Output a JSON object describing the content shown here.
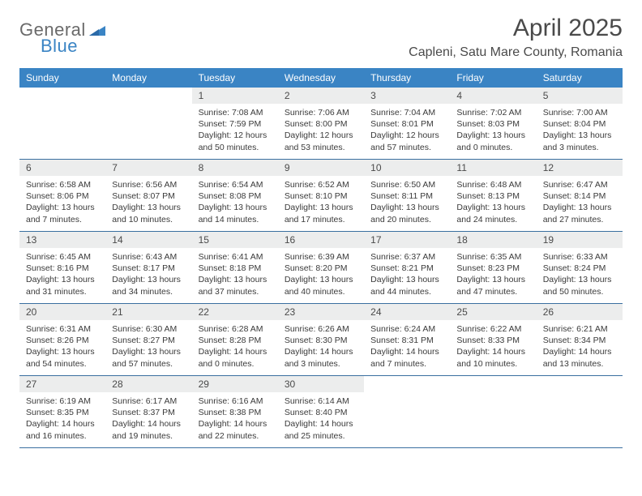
{
  "brand": {
    "part1": "General",
    "part2": "Blue",
    "color_gray": "#6a6a6a",
    "color_blue": "#3a84c4"
  },
  "title": "April 2025",
  "location": "Capleni, Satu Mare County, Romania",
  "colors": {
    "header_bg": "#3a84c4",
    "header_text": "#ffffff",
    "daynum_bg": "#eceded",
    "row_border": "#3a6fa0",
    "body_text": "#3a3a3a",
    "title_text": "#4a4a4a"
  },
  "daynames": [
    "Sunday",
    "Monday",
    "Tuesday",
    "Wednesday",
    "Thursday",
    "Friday",
    "Saturday"
  ],
  "weeks": [
    [
      {
        "n": "",
        "sr": "",
        "ss": "",
        "dl": ""
      },
      {
        "n": "",
        "sr": "",
        "ss": "",
        "dl": ""
      },
      {
        "n": "1",
        "sr": "Sunrise: 7:08 AM",
        "ss": "Sunset: 7:59 PM",
        "dl": "Daylight: 12 hours and 50 minutes."
      },
      {
        "n": "2",
        "sr": "Sunrise: 7:06 AM",
        "ss": "Sunset: 8:00 PM",
        "dl": "Daylight: 12 hours and 53 minutes."
      },
      {
        "n": "3",
        "sr": "Sunrise: 7:04 AM",
        "ss": "Sunset: 8:01 PM",
        "dl": "Daylight: 12 hours and 57 minutes."
      },
      {
        "n": "4",
        "sr": "Sunrise: 7:02 AM",
        "ss": "Sunset: 8:03 PM",
        "dl": "Daylight: 13 hours and 0 minutes."
      },
      {
        "n": "5",
        "sr": "Sunrise: 7:00 AM",
        "ss": "Sunset: 8:04 PM",
        "dl": "Daylight: 13 hours and 3 minutes."
      }
    ],
    [
      {
        "n": "6",
        "sr": "Sunrise: 6:58 AM",
        "ss": "Sunset: 8:06 PM",
        "dl": "Daylight: 13 hours and 7 minutes."
      },
      {
        "n": "7",
        "sr": "Sunrise: 6:56 AM",
        "ss": "Sunset: 8:07 PM",
        "dl": "Daylight: 13 hours and 10 minutes."
      },
      {
        "n": "8",
        "sr": "Sunrise: 6:54 AM",
        "ss": "Sunset: 8:08 PM",
        "dl": "Daylight: 13 hours and 14 minutes."
      },
      {
        "n": "9",
        "sr": "Sunrise: 6:52 AM",
        "ss": "Sunset: 8:10 PM",
        "dl": "Daylight: 13 hours and 17 minutes."
      },
      {
        "n": "10",
        "sr": "Sunrise: 6:50 AM",
        "ss": "Sunset: 8:11 PM",
        "dl": "Daylight: 13 hours and 20 minutes."
      },
      {
        "n": "11",
        "sr": "Sunrise: 6:48 AM",
        "ss": "Sunset: 8:13 PM",
        "dl": "Daylight: 13 hours and 24 minutes."
      },
      {
        "n": "12",
        "sr": "Sunrise: 6:47 AM",
        "ss": "Sunset: 8:14 PM",
        "dl": "Daylight: 13 hours and 27 minutes."
      }
    ],
    [
      {
        "n": "13",
        "sr": "Sunrise: 6:45 AM",
        "ss": "Sunset: 8:16 PM",
        "dl": "Daylight: 13 hours and 31 minutes."
      },
      {
        "n": "14",
        "sr": "Sunrise: 6:43 AM",
        "ss": "Sunset: 8:17 PM",
        "dl": "Daylight: 13 hours and 34 minutes."
      },
      {
        "n": "15",
        "sr": "Sunrise: 6:41 AM",
        "ss": "Sunset: 8:18 PM",
        "dl": "Daylight: 13 hours and 37 minutes."
      },
      {
        "n": "16",
        "sr": "Sunrise: 6:39 AM",
        "ss": "Sunset: 8:20 PM",
        "dl": "Daylight: 13 hours and 40 minutes."
      },
      {
        "n": "17",
        "sr": "Sunrise: 6:37 AM",
        "ss": "Sunset: 8:21 PM",
        "dl": "Daylight: 13 hours and 44 minutes."
      },
      {
        "n": "18",
        "sr": "Sunrise: 6:35 AM",
        "ss": "Sunset: 8:23 PM",
        "dl": "Daylight: 13 hours and 47 minutes."
      },
      {
        "n": "19",
        "sr": "Sunrise: 6:33 AM",
        "ss": "Sunset: 8:24 PM",
        "dl": "Daylight: 13 hours and 50 minutes."
      }
    ],
    [
      {
        "n": "20",
        "sr": "Sunrise: 6:31 AM",
        "ss": "Sunset: 8:26 PM",
        "dl": "Daylight: 13 hours and 54 minutes."
      },
      {
        "n": "21",
        "sr": "Sunrise: 6:30 AM",
        "ss": "Sunset: 8:27 PM",
        "dl": "Daylight: 13 hours and 57 minutes."
      },
      {
        "n": "22",
        "sr": "Sunrise: 6:28 AM",
        "ss": "Sunset: 8:28 PM",
        "dl": "Daylight: 14 hours and 0 minutes."
      },
      {
        "n": "23",
        "sr": "Sunrise: 6:26 AM",
        "ss": "Sunset: 8:30 PM",
        "dl": "Daylight: 14 hours and 3 minutes."
      },
      {
        "n": "24",
        "sr": "Sunrise: 6:24 AM",
        "ss": "Sunset: 8:31 PM",
        "dl": "Daylight: 14 hours and 7 minutes."
      },
      {
        "n": "25",
        "sr": "Sunrise: 6:22 AM",
        "ss": "Sunset: 8:33 PM",
        "dl": "Daylight: 14 hours and 10 minutes."
      },
      {
        "n": "26",
        "sr": "Sunrise: 6:21 AM",
        "ss": "Sunset: 8:34 PM",
        "dl": "Daylight: 14 hours and 13 minutes."
      }
    ],
    [
      {
        "n": "27",
        "sr": "Sunrise: 6:19 AM",
        "ss": "Sunset: 8:35 PM",
        "dl": "Daylight: 14 hours and 16 minutes."
      },
      {
        "n": "28",
        "sr": "Sunrise: 6:17 AM",
        "ss": "Sunset: 8:37 PM",
        "dl": "Daylight: 14 hours and 19 minutes."
      },
      {
        "n": "29",
        "sr": "Sunrise: 6:16 AM",
        "ss": "Sunset: 8:38 PM",
        "dl": "Daylight: 14 hours and 22 minutes."
      },
      {
        "n": "30",
        "sr": "Sunrise: 6:14 AM",
        "ss": "Sunset: 8:40 PM",
        "dl": "Daylight: 14 hours and 25 minutes."
      },
      {
        "n": "",
        "sr": "",
        "ss": "",
        "dl": ""
      },
      {
        "n": "",
        "sr": "",
        "ss": "",
        "dl": ""
      },
      {
        "n": "",
        "sr": "",
        "ss": "",
        "dl": ""
      }
    ]
  ]
}
